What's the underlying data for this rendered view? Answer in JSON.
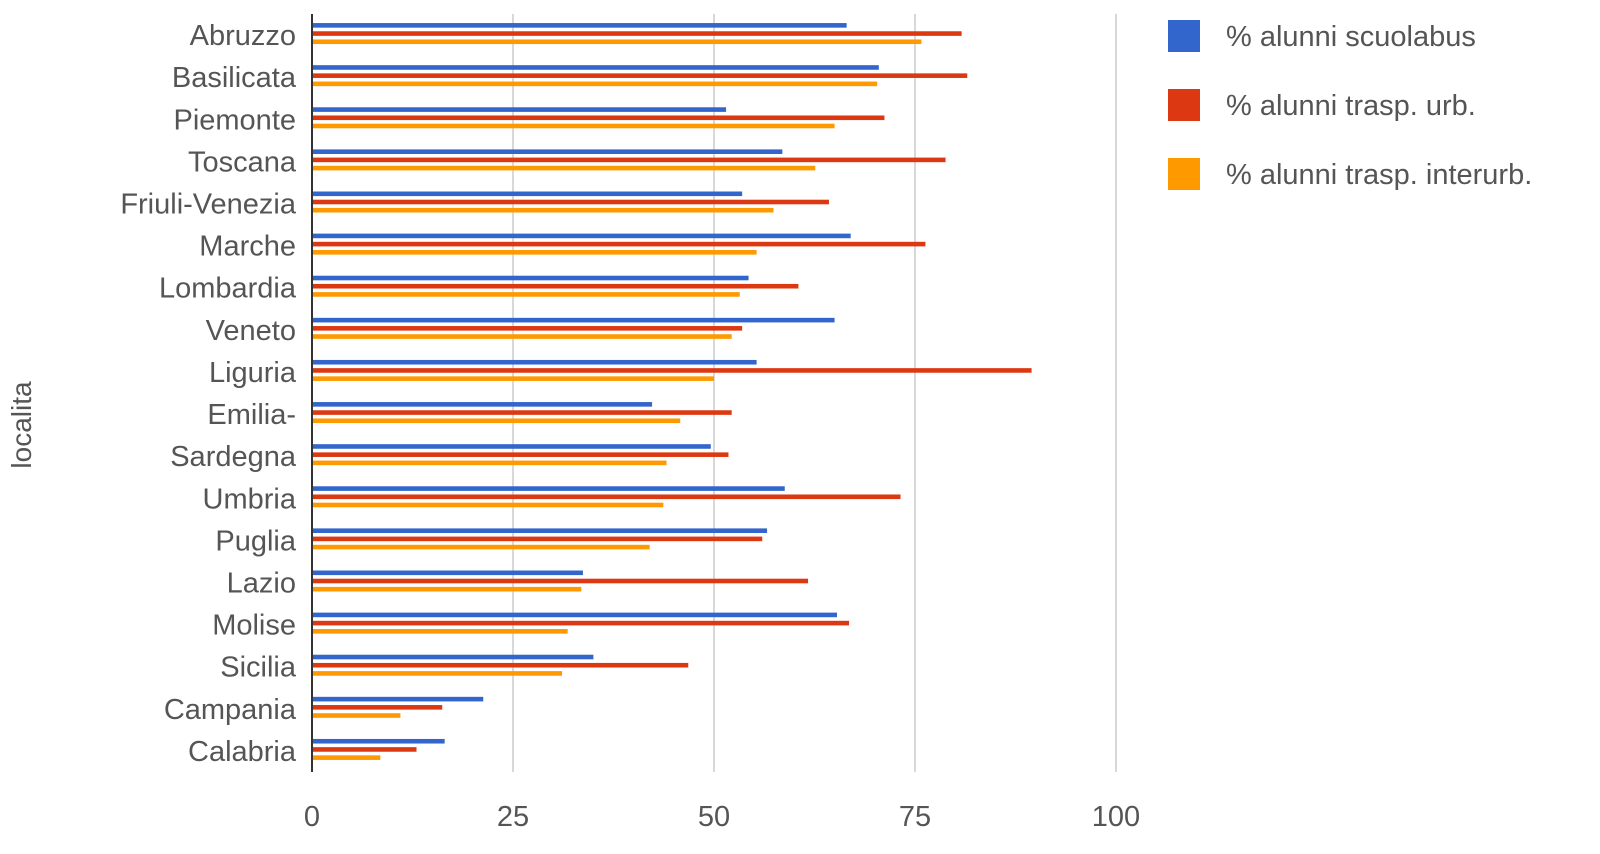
{
  "chart_data": {
    "type": "bar",
    "orientation": "horizontal",
    "categories": [
      "Abruzzo",
      "Basilicata",
      "Piemonte",
      "Toscana",
      "Friuli-Venezia",
      "Marche",
      "Lombardia",
      "Veneto",
      "Liguria",
      "Emilia-",
      "Sardegna",
      "Umbria",
      "Puglia",
      "Lazio",
      "Molise",
      "Sicilia",
      "Campania",
      "Calabria"
    ],
    "series": [
      {
        "name": "% alunni scuolabus",
        "color": "#3366cc",
        "values": [
          66.5,
          70.5,
          51.5,
          58.5,
          53.5,
          67,
          54.3,
          65,
          55.3,
          42.3,
          49.6,
          58.8,
          56.6,
          33.7,
          65.3,
          35,
          21.3,
          16.5
        ]
      },
      {
        "name": "% alunni trasp. urb.",
        "color": "#dc3912",
        "values": [
          80.8,
          81.5,
          71.2,
          78.8,
          64.3,
          76.3,
          60.5,
          53.5,
          89.5,
          52.2,
          51.8,
          73.2,
          56,
          61.7,
          66.8,
          46.8,
          16.2,
          13
        ]
      },
      {
        "name": "% alunni trasp. interurb.",
        "color": "#ff9900",
        "values": [
          75.8,
          70.3,
          65,
          62.6,
          57.4,
          55.3,
          53.2,
          52.2,
          50,
          45.8,
          44.1,
          43.7,
          42,
          33.5,
          31.8,
          31.1,
          11,
          8.5
        ]
      }
    ],
    "xticks": [
      0,
      25,
      50,
      75,
      100
    ],
    "xlim": [
      0,
      100
    ],
    "xlabel": "",
    "ylabel": "localita",
    "grid": true,
    "legend_position": "right"
  }
}
